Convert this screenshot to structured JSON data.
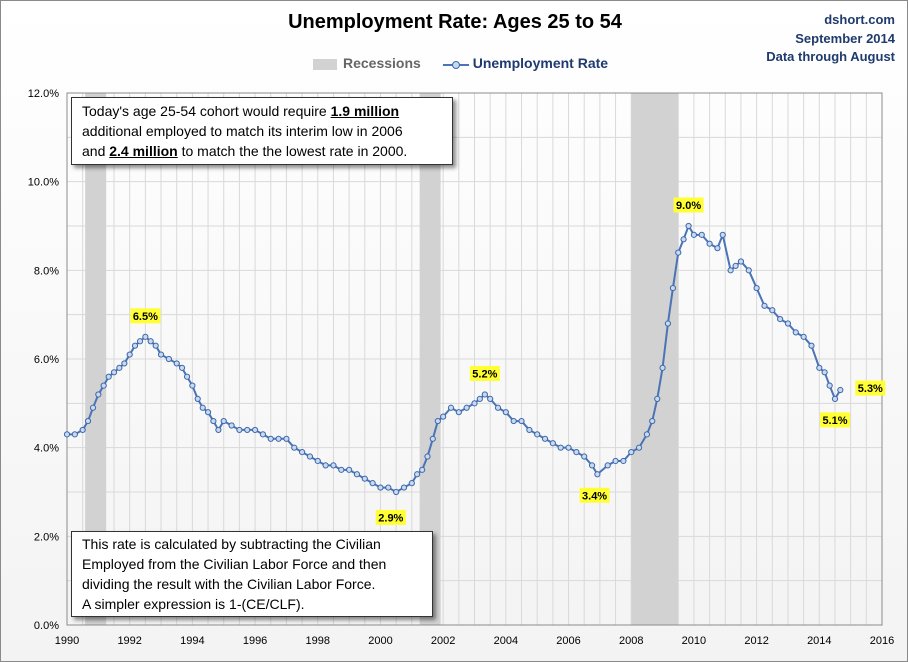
{
  "header": {
    "title": "Unemployment Rate: Ages 25 to 54",
    "source": "dshort.com",
    "date": "September 2014",
    "coverage": "Data through August"
  },
  "legend": {
    "recessions": "Recessions",
    "rate": "Unemployment Rate"
  },
  "notes": {
    "top": {
      "l1a": "Today's age 25-54 cohort would require ",
      "l1b": "1.9 million",
      "l2": "additional employed to match its interim low in 2006",
      "l3a": "and ",
      "l3b": "2.4 million",
      "l3c": " to match the the lowest rate in 2000."
    },
    "bottom": {
      "l1": "This rate is calculated by subtracting the Civilian",
      "l2": "Employed from  the Civilian Labor Force and then",
      "l3": "dividing the result with the Civilian Labor Force.",
      "l4": "A simpler expression is 1-(CE/CLF)."
    }
  },
  "colors": {
    "line": "#4a74b5",
    "marker_fill": "#c9d9ef",
    "marker_stroke": "#3d68ab",
    "recession": "#d2d2d2",
    "callout_bg": "#ffff33",
    "grid": "#d9d9d9"
  },
  "chart_data": {
    "type": "line",
    "title": "Unemployment Rate: Ages 25 to 54",
    "xlabel": "",
    "ylabel": "",
    "xlim": [
      1990,
      2016
    ],
    "ylim": [
      0,
      12
    ],
    "x_ticks": [
      "1990",
      "1992",
      "1994",
      "1996",
      "1998",
      "2000",
      "2002",
      "2004",
      "2006",
      "2008",
      "2010",
      "2012",
      "2014",
      "2016"
    ],
    "y_ticks": [
      "0.0%",
      "2.0%",
      "4.0%",
      "6.0%",
      "8.0%",
      "10.0%",
      "12.0%"
    ],
    "grid": true,
    "legend_position": "top-center",
    "recessions": [
      {
        "start": 1990.58,
        "end": 1991.25
      },
      {
        "start": 2001.25,
        "end": 2001.92
      },
      {
        "start": 2008.0,
        "end": 2009.5
      }
    ],
    "series": [
      {
        "name": "Unemployment Rate",
        "x": [
          1990.0,
          1990.25,
          1990.5,
          1990.67,
          1990.83,
          1991.0,
          1991.17,
          1991.33,
          1991.5,
          1991.67,
          1991.83,
          1992.0,
          1992.17,
          1992.33,
          1992.5,
          1992.67,
          1992.83,
          1993.0,
          1993.25,
          1993.5,
          1993.67,
          1993.83,
          1994.0,
          1994.17,
          1994.33,
          1994.5,
          1994.67,
          1994.83,
          1995.0,
          1995.25,
          1995.5,
          1995.75,
          1996.0,
          1996.25,
          1996.5,
          1996.75,
          1997.0,
          1997.25,
          1997.5,
          1997.75,
          1998.0,
          1998.25,
          1998.5,
          1998.75,
          1999.0,
          1999.25,
          1999.5,
          1999.75,
          2000.0,
          2000.25,
          2000.5,
          2000.75,
          2001.0,
          2001.17,
          2001.33,
          2001.5,
          2001.67,
          2001.83,
          2002.0,
          2002.25,
          2002.5,
          2002.75,
          2003.0,
          2003.17,
          2003.33,
          2003.5,
          2003.75,
          2004.0,
          2004.25,
          2004.5,
          2004.75,
          2005.0,
          2005.25,
          2005.5,
          2005.75,
          2006.0,
          2006.25,
          2006.5,
          2006.75,
          2006.92,
          2007.25,
          2007.5,
          2007.75,
          2008.0,
          2008.25,
          2008.5,
          2008.67,
          2008.83,
          2009.0,
          2009.17,
          2009.33,
          2009.5,
          2009.67,
          2009.83,
          2010.0,
          2010.25,
          2010.5,
          2010.75,
          2010.92,
          2011.17,
          2011.33,
          2011.5,
          2011.75,
          2012.0,
          2012.25,
          2012.5,
          2012.75,
          2013.0,
          2013.25,
          2013.5,
          2013.75,
          2014.0,
          2014.17,
          2014.33,
          2014.5,
          2014.67
        ],
        "values": [
          4.3,
          4.3,
          4.4,
          4.6,
          4.9,
          5.2,
          5.4,
          5.6,
          5.7,
          5.8,
          5.9,
          6.1,
          6.3,
          6.4,
          6.5,
          6.4,
          6.3,
          6.1,
          6.0,
          5.9,
          5.8,
          5.6,
          5.4,
          5.1,
          4.9,
          4.8,
          4.6,
          4.4,
          4.6,
          4.5,
          4.4,
          4.4,
          4.4,
          4.3,
          4.2,
          4.2,
          4.2,
          4.0,
          3.9,
          3.8,
          3.7,
          3.6,
          3.6,
          3.5,
          3.5,
          3.4,
          3.3,
          3.2,
          3.1,
          3.1,
          3.0,
          3.1,
          3.2,
          3.4,
          3.5,
          3.8,
          4.2,
          4.6,
          4.7,
          4.9,
          4.8,
          4.9,
          5.0,
          5.1,
          5.2,
          5.1,
          4.9,
          4.8,
          4.6,
          4.6,
          4.4,
          4.3,
          4.2,
          4.1,
          4.0,
          4.0,
          3.9,
          3.8,
          3.6,
          3.4,
          3.6,
          3.7,
          3.7,
          3.9,
          4.0,
          4.3,
          4.6,
          5.1,
          5.8,
          6.8,
          7.6,
          8.4,
          8.7,
          9.0,
          8.8,
          8.8,
          8.6,
          8.5,
          8.8,
          8.0,
          8.1,
          8.2,
          8.0,
          7.6,
          7.2,
          7.1,
          6.9,
          6.8,
          6.6,
          6.5,
          6.3,
          5.8,
          5.7,
          5.4,
          5.1,
          5.3
        ]
      }
    ],
    "annotations": [
      {
        "label": "6.5%",
        "x": 1992.5,
        "y": 6.5,
        "pos": "above"
      },
      {
        "label": "2.9%",
        "x": 2000.33,
        "y": 2.9,
        "pos": "below"
      },
      {
        "label": "5.2%",
        "x": 2003.33,
        "y": 5.2,
        "pos": "above"
      },
      {
        "label": "3.4%",
        "x": 2006.83,
        "y": 3.4,
        "pos": "below"
      },
      {
        "label": "9.0%",
        "x": 2009.83,
        "y": 9.0,
        "pos": "above"
      },
      {
        "label": "5.1%",
        "x": 2014.5,
        "y": 5.1,
        "pos": "below"
      },
      {
        "label": "5.3%",
        "x": 2014.67,
        "y": 5.3,
        "pos": "right"
      }
    ]
  }
}
